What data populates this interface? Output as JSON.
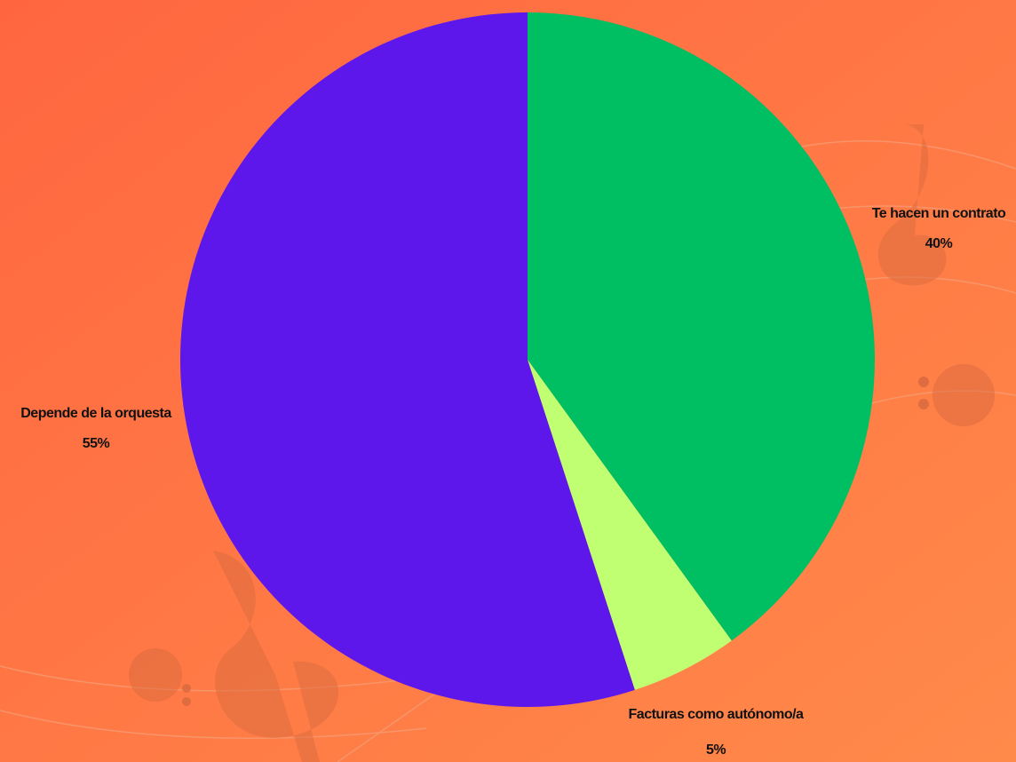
{
  "chart_data": {
    "type": "pie",
    "categories": [
      "Te hacen un contrato",
      "Facturas como autónomo/a",
      "Depende de la orquesta"
    ],
    "values": [
      40,
      5,
      55
    ],
    "value_labels": [
      "40%",
      "5%",
      "55%"
    ],
    "colors": [
      "#00bf63",
      "#c1ff72",
      "#5e17eb"
    ]
  }
}
